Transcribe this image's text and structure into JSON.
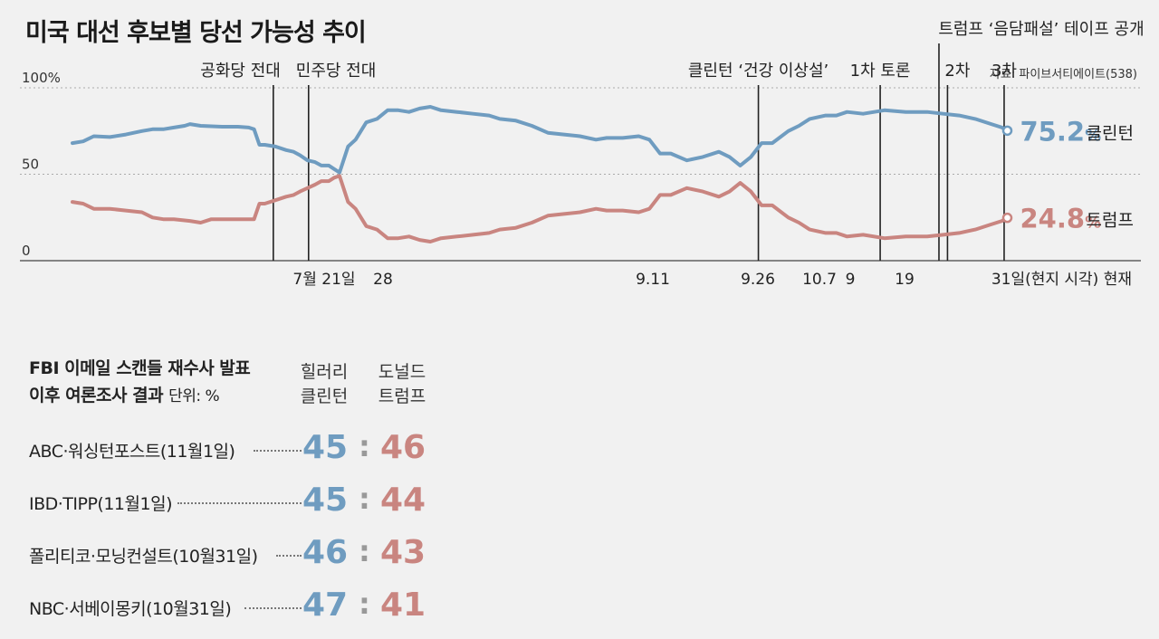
{
  "title": "미국 대선 후보별 당선 가능성 추이",
  "source": "자료: 파이브서티에이트(538)",
  "chart_data": {
    "type": "line",
    "ylim": [
      0,
      100
    ],
    "yticks": [
      {
        "value": 100,
        "label": "100%"
      },
      {
        "value": 50,
        "label": "50"
      },
      {
        "value": 0,
        "label": "0"
      }
    ],
    "x_tick_labels": [
      "7월 21일",
      "28",
      "9.11",
      "9.26",
      "10.7",
      "9",
      "19",
      "31일(현지 시각) 현재"
    ],
    "events": [
      {
        "label": "공화당 전대",
        "x": 0.188
      },
      {
        "label": "민주당 전대",
        "x": 0.221
      },
      {
        "label": "클린턴 ‘건강 이상설’",
        "x": 0.642
      },
      {
        "label": "1차 토론",
        "x": 0.756
      },
      {
        "label": "트럼프 ‘음담패설’ 테이프 공개",
        "x": 0.811
      },
      {
        "label": "2차",
        "x": 0.819
      },
      {
        "label": "3차",
        "x": 0.872
      }
    ],
    "series": [
      {
        "name": "클린턴",
        "color": "#6f9cc0",
        "final_label": "75.2",
        "pct_sign": "%",
        "points": [
          [
            0,
            68
          ],
          [
            0.01,
            69
          ],
          [
            0.02,
            72
          ],
          [
            0.035,
            71.5
          ],
          [
            0.05,
            73
          ],
          [
            0.065,
            75
          ],
          [
            0.075,
            76
          ],
          [
            0.085,
            76
          ],
          [
            0.095,
            77
          ],
          [
            0.105,
            78
          ],
          [
            0.11,
            79
          ],
          [
            0.12,
            78
          ],
          [
            0.14,
            77.5
          ],
          [
            0.155,
            77.5
          ],
          [
            0.165,
            77
          ],
          [
            0.17,
            76
          ],
          [
            0.175,
            67
          ],
          [
            0.18,
            67
          ],
          [
            0.19,
            66
          ],
          [
            0.2,
            64
          ],
          [
            0.207,
            63
          ],
          [
            0.213,
            61
          ],
          [
            0.22,
            58
          ],
          [
            0.227,
            57
          ],
          [
            0.233,
            55
          ],
          [
            0.24,
            55
          ],
          [
            0.245,
            53
          ],
          [
            0.25,
            51
          ],
          [
            0.258,
            66
          ],
          [
            0.265,
            70
          ],
          [
            0.275,
            80
          ],
          [
            0.285,
            82
          ],
          [
            0.295,
            87
          ],
          [
            0.305,
            87
          ],
          [
            0.315,
            86
          ],
          [
            0.325,
            88
          ],
          [
            0.335,
            89
          ],
          [
            0.345,
            87
          ],
          [
            0.36,
            86
          ],
          [
            0.375,
            85
          ],
          [
            0.39,
            84
          ],
          [
            0.4,
            82
          ],
          [
            0.415,
            81
          ],
          [
            0.43,
            78
          ],
          [
            0.445,
            74
          ],
          [
            0.46,
            73
          ],
          [
            0.475,
            72
          ],
          [
            0.49,
            70
          ],
          [
            0.5,
            71
          ],
          [
            0.515,
            71
          ],
          [
            0.53,
            72
          ],
          [
            0.54,
            70
          ],
          [
            0.55,
            62
          ],
          [
            0.56,
            62
          ],
          [
            0.575,
            58
          ],
          [
            0.59,
            60
          ],
          [
            0.605,
            63
          ],
          [
            0.615,
            60
          ],
          [
            0.625,
            55
          ],
          [
            0.635,
            60
          ],
          [
            0.645,
            68
          ],
          [
            0.655,
            68
          ],
          [
            0.67,
            75
          ],
          [
            0.68,
            78
          ],
          [
            0.69,
            82
          ],
          [
            0.705,
            84
          ],
          [
            0.715,
            84
          ],
          [
            0.725,
            86
          ],
          [
            0.74,
            85
          ],
          [
            0.76,
            87
          ],
          [
            0.78,
            86
          ],
          [
            0.8,
            86
          ],
          [
            0.815,
            85
          ],
          [
            0.83,
            84
          ],
          [
            0.845,
            82
          ],
          [
            0.86,
            79
          ],
          [
            0.87,
            77
          ],
          [
            0.875,
            75.2
          ]
        ]
      },
      {
        "name": "트럼프",
        "color": "#c98580",
        "final_label": "24.8",
        "pct_sign": "%",
        "points": [
          [
            0,
            34
          ],
          [
            0.01,
            33
          ],
          [
            0.02,
            30
          ],
          [
            0.035,
            30
          ],
          [
            0.05,
            29
          ],
          [
            0.065,
            28
          ],
          [
            0.075,
            25
          ],
          [
            0.085,
            24
          ],
          [
            0.095,
            24
          ],
          [
            0.11,
            23
          ],
          [
            0.12,
            22
          ],
          [
            0.13,
            24
          ],
          [
            0.15,
            24
          ],
          [
            0.165,
            24
          ],
          [
            0.17,
            24
          ],
          [
            0.175,
            33
          ],
          [
            0.18,
            33
          ],
          [
            0.19,
            35
          ],
          [
            0.2,
            37
          ],
          [
            0.207,
            38
          ],
          [
            0.213,
            40
          ],
          [
            0.22,
            42
          ],
          [
            0.227,
            44
          ],
          [
            0.233,
            46
          ],
          [
            0.24,
            46
          ],
          [
            0.245,
            48
          ],
          [
            0.25,
            49
          ],
          [
            0.258,
            34
          ],
          [
            0.265,
            30
          ],
          [
            0.275,
            20
          ],
          [
            0.285,
            18
          ],
          [
            0.295,
            13
          ],
          [
            0.305,
            13
          ],
          [
            0.315,
            14
          ],
          [
            0.325,
            12
          ],
          [
            0.335,
            11
          ],
          [
            0.345,
            13
          ],
          [
            0.36,
            14
          ],
          [
            0.375,
            15
          ],
          [
            0.39,
            16
          ],
          [
            0.4,
            18
          ],
          [
            0.415,
            19
          ],
          [
            0.43,
            22
          ],
          [
            0.445,
            26
          ],
          [
            0.46,
            27
          ],
          [
            0.475,
            28
          ],
          [
            0.49,
            30
          ],
          [
            0.5,
            29
          ],
          [
            0.515,
            29
          ],
          [
            0.53,
            28
          ],
          [
            0.54,
            30
          ],
          [
            0.55,
            38
          ],
          [
            0.56,
            38
          ],
          [
            0.575,
            42
          ],
          [
            0.59,
            40
          ],
          [
            0.605,
            37
          ],
          [
            0.615,
            40
          ],
          [
            0.625,
            45
          ],
          [
            0.635,
            40
          ],
          [
            0.645,
            32
          ],
          [
            0.655,
            32
          ],
          [
            0.67,
            25
          ],
          [
            0.68,
            22
          ],
          [
            0.69,
            18
          ],
          [
            0.705,
            16
          ],
          [
            0.715,
            16
          ],
          [
            0.725,
            14
          ],
          [
            0.74,
            15
          ],
          [
            0.76,
            13
          ],
          [
            0.78,
            14
          ],
          [
            0.8,
            14
          ],
          [
            0.815,
            15
          ],
          [
            0.83,
            16
          ],
          [
            0.845,
            18
          ],
          [
            0.86,
            21
          ],
          [
            0.87,
            23
          ],
          [
            0.875,
            24.8
          ]
        ]
      }
    ]
  },
  "polls": {
    "title_line1": "FBI 이메일 스캔들 재수사 발표",
    "title_line2": "이후 여론조사 결과",
    "unit": "단위: %",
    "col1_line1": "힐러리",
    "col1_line2": "클린턴",
    "col2_line1": "도널드",
    "col2_line2": "트럼프",
    "separator": ":",
    "rows": [
      {
        "name": "ABC·워싱턴포스트(11월1일)",
        "clinton": "45",
        "trump": "46"
      },
      {
        "name": "IBD·TIPP(11월1일)",
        "clinton": "45",
        "trump": "44"
      },
      {
        "name": "폴리티코·모닝컨설트(10월31일)",
        "clinton": "46",
        "trump": "43"
      },
      {
        "name": "NBC·서베이몽키(10월31일)",
        "clinton": "47",
        "trump": "41"
      }
    ]
  }
}
